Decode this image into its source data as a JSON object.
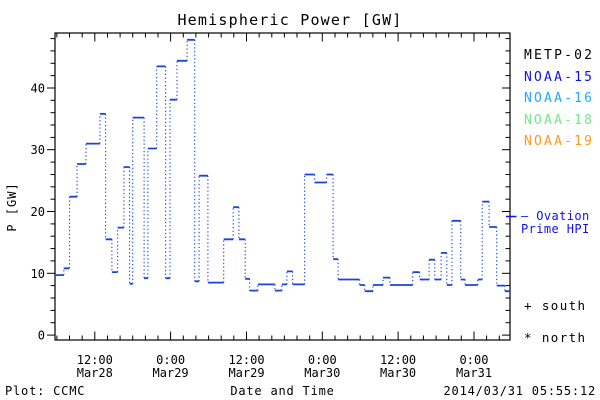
{
  "legend": {
    "satellites": [
      {
        "label": "METP-02",
        "color": "#000000"
      },
      {
        "label": "NOAA-15",
        "color": "#1111ee"
      },
      {
        "label": "NOAA-16",
        "color": "#22aaff"
      },
      {
        "label": "NOAA-18",
        "color": "#77e688"
      },
      {
        "label": "NOAA-19",
        "color": "#ff9922"
      }
    ],
    "ovation": {
      "line1": "— Ovation",
      "line2": "Prime HPI",
      "color": "#1111ee"
    },
    "south_marker": "+ south",
    "north_marker": "* north"
  },
  "footer": {
    "left": "Plot: CCMC",
    "center": "Date and Time",
    "right": "2014/03/31 05:55:12"
  },
  "chart_data": {
    "type": "line",
    "title": "Hemispheric Power [GW]",
    "xlabel": "Date and Time",
    "ylabel": "P [GW]",
    "x_unit": "hours since Mar28 00:00",
    "x_domain": [
      5.7,
      77.7
    ],
    "y_domain": [
      -0.8,
      48.9
    ],
    "ylim": [
      0,
      48.9
    ],
    "y_major_ticks": [
      0,
      10,
      20,
      30,
      40
    ],
    "y_minor_step": 2,
    "x_minor_step_hours": 2,
    "x_major_ticks": [
      {
        "hour": 12,
        "time": "12:00",
        "date": "Mar28"
      },
      {
        "hour": 24,
        "time": "0:00",
        "date": "Mar29"
      },
      {
        "hour": 36,
        "time": "12:00",
        "date": "Mar29"
      },
      {
        "hour": 48,
        "time": "0:00",
        "date": "Mar30"
      },
      {
        "hour": 60,
        "time": "12:00",
        "date": "Mar30"
      },
      {
        "hour": 72,
        "time": "0:00",
        "date": "Mar31"
      }
    ],
    "grid": "off",
    "legend_position": "right",
    "series": [
      {
        "name": "Ovation Prime HPI",
        "color": "#1a44dd",
        "style": "step line: solid horizontal plateaus, dotted vertical risers",
        "steps_hour_value": [
          [
            5.7,
            9.7
          ],
          [
            7.1,
            10.8
          ],
          [
            8.0,
            22.4
          ],
          [
            9.2,
            27.7
          ],
          [
            10.6,
            31.0
          ],
          [
            12.8,
            35.8
          ],
          [
            13.7,
            15.5
          ],
          [
            14.7,
            10.2
          ],
          [
            15.6,
            17.4
          ],
          [
            16.6,
            27.2
          ],
          [
            17.5,
            8.3
          ],
          [
            18.0,
            35.2
          ],
          [
            19.8,
            9.2
          ],
          [
            20.4,
            30.2
          ],
          [
            21.8,
            43.5
          ],
          [
            23.2,
            9.2
          ],
          [
            23.9,
            38.1
          ],
          [
            25.0,
            44.4
          ],
          [
            26.6,
            47.8
          ],
          [
            27.8,
            8.7
          ],
          [
            28.5,
            25.8
          ],
          [
            29.9,
            8.5
          ],
          [
            32.4,
            15.5
          ],
          [
            33.9,
            20.7
          ],
          [
            34.8,
            15.5
          ],
          [
            35.8,
            9.1
          ],
          [
            36.5,
            7.2
          ],
          [
            37.8,
            8.2
          ],
          [
            40.5,
            7.2
          ],
          [
            41.6,
            8.2
          ],
          [
            42.4,
            10.3
          ],
          [
            43.3,
            8.2
          ],
          [
            45.2,
            26.0
          ],
          [
            46.8,
            24.7
          ],
          [
            48.7,
            26.0
          ],
          [
            49.7,
            12.3
          ],
          [
            50.5,
            9.0
          ],
          [
            53.9,
            8.1
          ],
          [
            54.7,
            7.1
          ],
          [
            56.0,
            8.1
          ],
          [
            57.6,
            9.3
          ],
          [
            58.7,
            8.1
          ],
          [
            62.3,
            10.2
          ],
          [
            63.4,
            9.0
          ],
          [
            64.9,
            12.2
          ],
          [
            65.8,
            9.0
          ],
          [
            66.8,
            13.3
          ],
          [
            67.7,
            8.1
          ],
          [
            68.5,
            18.5
          ],
          [
            69.9,
            9.0
          ],
          [
            70.6,
            8.1
          ],
          [
            72.6,
            9.0
          ],
          [
            73.3,
            21.6
          ],
          [
            74.4,
            17.5
          ],
          [
            75.6,
            8.0
          ],
          [
            76.9,
            7.1
          ]
        ]
      }
    ]
  }
}
